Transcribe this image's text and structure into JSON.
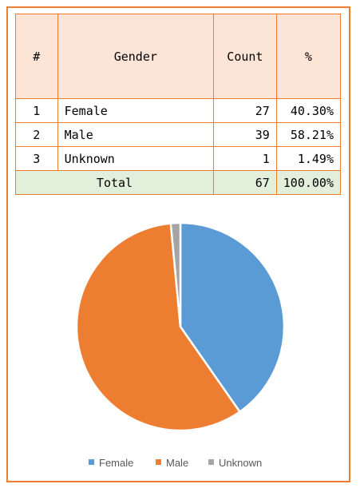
{
  "table": {
    "headers": [
      "#",
      "Gender",
      "Count",
      "%"
    ],
    "rows": [
      {
        "num": "1",
        "gender": "Female",
        "count": "27",
        "pct": "40.30%"
      },
      {
        "num": "2",
        "gender": "Male",
        "count": "39",
        "pct": "58.21%"
      },
      {
        "num": "3",
        "gender": "Unknown",
        "count": "1",
        "pct": "1.49%"
      }
    ],
    "total": {
      "label": "Total",
      "count": "67",
      "pct": "100.00%"
    }
  },
  "chart_data": {
    "type": "pie",
    "categories": [
      "Female",
      "Male",
      "Unknown"
    ],
    "values": [
      27,
      39,
      1
    ],
    "colors": [
      "#5B9BD5",
      "#ED7D31",
      "#A5A5A5"
    ],
    "legend": "bottom"
  }
}
